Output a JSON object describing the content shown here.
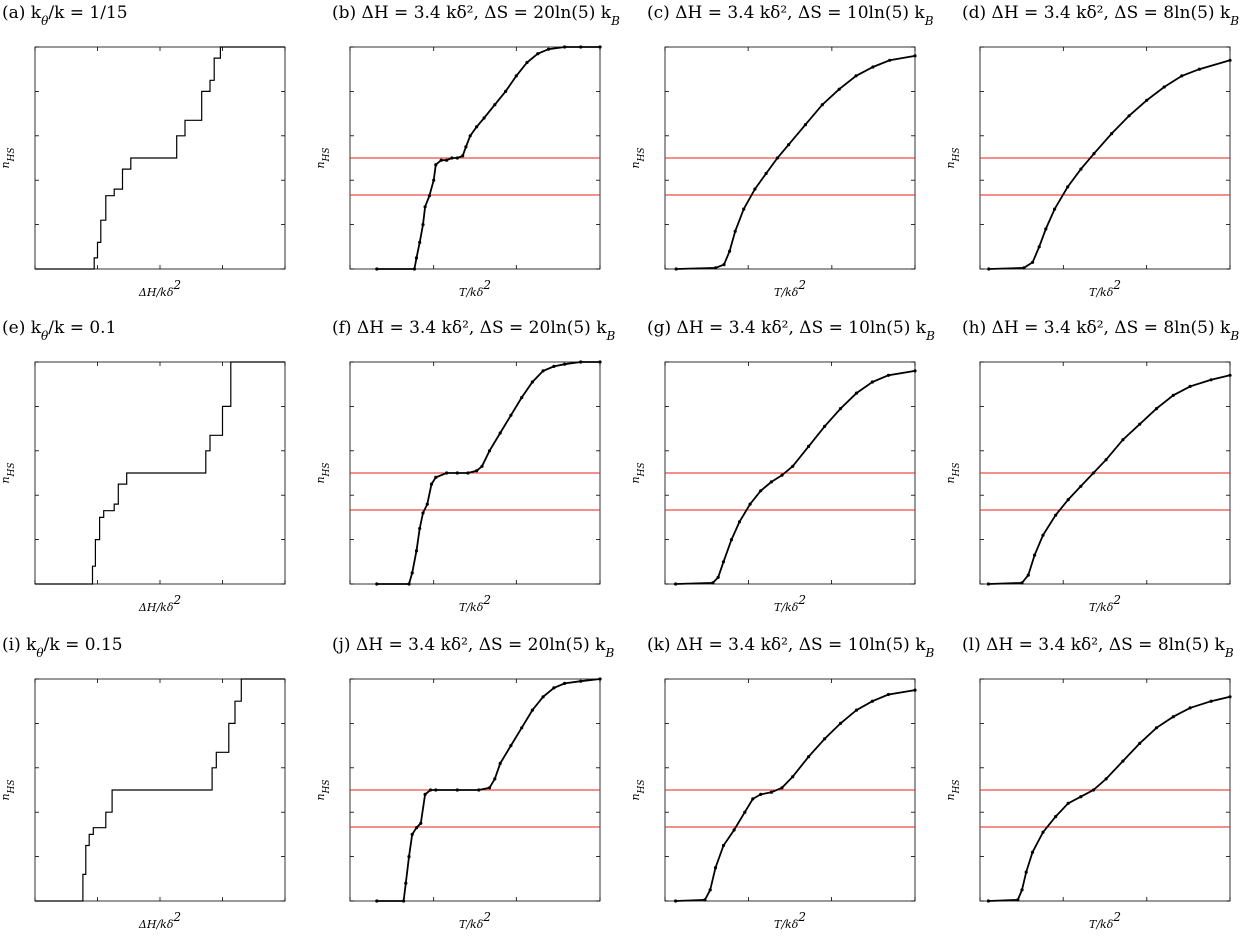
{
  "figure": {
    "colors": {
      "curve": "#000000",
      "reference": "#e8201a",
      "axes": "#000000"
    },
    "y_ticks": [
      "0",
      "0.2",
      "0.4",
      "0.6",
      "0.8",
      "1"
    ],
    "y_label": "n_HS",
    "x_label_dH": "ΔH/kδ²",
    "x_label_T": "T/kδ²",
    "reference_labels": {
      "half": "1/2",
      "third": "1/3"
    }
  },
  "chart_data": [
    {
      "id": "a",
      "type": "line",
      "title": "(a) k_θ/k = 1/15",
      "xlabel": "ΔH/kδ²",
      "ylabel": "n_HS",
      "xlim": [
        3,
        -3
      ],
      "ylim": [
        0,
        1
      ],
      "x_reversed": true,
      "x_ticks": [
        "3",
        "1.5",
        "0",
        "-1.5",
        "-3"
      ],
      "x": [
        3.0,
        1.65,
        1.58,
        1.5,
        1.42,
        1.3,
        1.1,
        0.9,
        0.7,
        0.6,
        -0.3,
        -0.4,
        -0.6,
        -0.8,
        -1.0,
        -1.2,
        -1.3,
        -1.45,
        -1.9,
        -3.0
      ],
      "y": [
        0,
        0,
        0.05,
        0.12,
        0.22,
        0.33,
        0.36,
        0.45,
        0.5,
        0.5,
        0.5,
        0.6,
        0.67,
        0.67,
        0.8,
        0.85,
        0.95,
        1.0,
        1.0,
        1.0
      ]
    },
    {
      "id": "b",
      "type": "line",
      "title": "(b) ΔH = 3.4 kδ², ΔS = 20ln(5) k_B",
      "xlabel": "T/kδ²",
      "ylabel": "n_HS",
      "xlim": [
        0,
        0.233
      ],
      "ylim": [
        0,
        1
      ],
      "x_ticks": [
        "0",
        "0.078",
        "0.155",
        "0.233"
      ],
      "reference_lines": [
        0.5,
        0.3333
      ],
      "x": [
        0.025,
        0.06,
        0.062,
        0.065,
        0.068,
        0.07,
        0.074,
        0.078,
        0.08,
        0.085,
        0.09,
        0.095,
        0.1,
        0.105,
        0.108,
        0.112,
        0.118,
        0.125,
        0.135,
        0.145,
        0.155,
        0.165,
        0.175,
        0.185,
        0.2,
        0.215,
        0.233
      ],
      "y": [
        0,
        0,
        0.05,
        0.12,
        0.2,
        0.28,
        0.33,
        0.4,
        0.47,
        0.49,
        0.49,
        0.5,
        0.5,
        0.51,
        0.55,
        0.6,
        0.64,
        0.68,
        0.74,
        0.8,
        0.87,
        0.93,
        0.97,
        0.99,
        1.0,
        1.0,
        1.0
      ]
    },
    {
      "id": "c",
      "type": "line",
      "title": "(c) ΔH = 3.4 kδ², ΔS = 10ln(5) k_B",
      "xlabel": "T/kδ²",
      "ylabel": "n_HS",
      "xlim": [
        0,
        0.445
      ],
      "ylim": [
        0,
        1
      ],
      "x_ticks": [
        "0",
        "0.148",
        "0.297",
        "0.445"
      ],
      "reference_lines": [
        0.5,
        0.3333
      ],
      "x": [
        0.02,
        0.09,
        0.105,
        0.115,
        0.125,
        0.14,
        0.16,
        0.18,
        0.2,
        0.22,
        0.25,
        0.28,
        0.31,
        0.34,
        0.37,
        0.4,
        0.445
      ],
      "y": [
        0,
        0.005,
        0.02,
        0.08,
        0.17,
        0.27,
        0.36,
        0.43,
        0.5,
        0.56,
        0.65,
        0.74,
        0.81,
        0.87,
        0.91,
        0.94,
        0.96
      ]
    },
    {
      "id": "d",
      "type": "line",
      "title": "(d) ΔH = 3.4 kδ², ΔS = 8ln(5) k_B",
      "xlabel": "T/kδ²",
      "ylabel": "n_HS",
      "xlim": [
        0,
        0.57
      ],
      "ylim": [
        0,
        1
      ],
      "x_ticks": [
        "0",
        "0.19",
        "0.38",
        "0.57"
      ],
      "reference_lines": [
        0.5,
        0.3333
      ],
      "x": [
        0.02,
        0.1,
        0.12,
        0.135,
        0.15,
        0.17,
        0.2,
        0.23,
        0.26,
        0.3,
        0.34,
        0.38,
        0.42,
        0.46,
        0.5,
        0.57
      ],
      "y": [
        0,
        0.005,
        0.03,
        0.1,
        0.18,
        0.27,
        0.37,
        0.45,
        0.52,
        0.61,
        0.69,
        0.76,
        0.82,
        0.87,
        0.9,
        0.94
      ]
    },
    {
      "id": "e",
      "type": "line",
      "title": "(e) k_θ/k = 0.1",
      "xlabel": "ΔH/kδ²",
      "ylabel": "n_HS",
      "xlim": [
        3,
        -3
      ],
      "ylim": [
        0,
        1
      ],
      "x_reversed": true,
      "x_ticks": [
        "3",
        "1.5",
        "0",
        "-1.5",
        "-3"
      ],
      "x": [
        3.0,
        1.7,
        1.62,
        1.55,
        1.45,
        1.35,
        1.1,
        1.0,
        0.8,
        -1.0,
        -1.1,
        -1.2,
        -1.3,
        -1.5,
        -1.7,
        -1.9,
        -3.0
      ],
      "y": [
        0,
        0,
        0.08,
        0.2,
        0.3,
        0.33,
        0.36,
        0.45,
        0.5,
        0.5,
        0.6,
        0.67,
        0.67,
        0.8,
        1.0,
        1.0,
        1.0
      ]
    },
    {
      "id": "f",
      "type": "line",
      "title": "(f) ΔH = 3.4 kδ², ΔS = 20ln(5) k_B",
      "xlabel": "T/kδ²",
      "ylabel": "n_HS",
      "xlim": [
        0,
        0.233
      ],
      "ylim": [
        0,
        1
      ],
      "x_ticks": [
        "0",
        "0.078",
        "0.155",
        "0.233"
      ],
      "reference_lines": [
        0.5,
        0.3333
      ],
      "x": [
        0.025,
        0.055,
        0.058,
        0.062,
        0.065,
        0.068,
        0.072,
        0.076,
        0.08,
        0.09,
        0.1,
        0.11,
        0.118,
        0.123,
        0.13,
        0.14,
        0.15,
        0.16,
        0.17,
        0.18,
        0.19,
        0.2,
        0.215,
        0.233
      ],
      "y": [
        0,
        0,
        0.05,
        0.15,
        0.25,
        0.32,
        0.36,
        0.45,
        0.48,
        0.5,
        0.5,
        0.5,
        0.51,
        0.53,
        0.6,
        0.68,
        0.76,
        0.84,
        0.91,
        0.96,
        0.98,
        0.99,
        1.0,
        1.0
      ]
    },
    {
      "id": "g",
      "type": "line",
      "title": "(g) ΔH = 3.4 kδ², ΔS = 10ln(5) k_B",
      "xlabel": "T/kδ²",
      "ylabel": "n_HS",
      "xlim": [
        0,
        0.47
      ],
      "ylim": [
        0,
        1
      ],
      "x_ticks": [
        "0",
        "0.157",
        "0.313",
        "0.47"
      ],
      "reference_lines": [
        0.5,
        0.3333
      ],
      "x": [
        0.02,
        0.09,
        0.1,
        0.11,
        0.125,
        0.14,
        0.16,
        0.18,
        0.2,
        0.22,
        0.24,
        0.27,
        0.3,
        0.33,
        0.36,
        0.39,
        0.42,
        0.47
      ],
      "y": [
        0,
        0.005,
        0.03,
        0.1,
        0.2,
        0.28,
        0.36,
        0.42,
        0.46,
        0.49,
        0.53,
        0.62,
        0.71,
        0.79,
        0.86,
        0.91,
        0.94,
        0.96
      ]
    },
    {
      "id": "h",
      "type": "line",
      "title": "(h) ΔH = 3.4 kδ², ΔS = 8ln(5) k_B",
      "xlabel": "T/kδ²",
      "ylabel": "n_HS",
      "xlim": [
        0,
        0.595
      ],
      "ylim": [
        0,
        1
      ],
      "x_ticks": [
        "0",
        "0.198",
        "0.397",
        "0.595"
      ],
      "reference_lines": [
        0.5,
        0.3333
      ],
      "x": [
        0.02,
        0.1,
        0.115,
        0.13,
        0.15,
        0.18,
        0.21,
        0.24,
        0.27,
        0.3,
        0.34,
        0.38,
        0.42,
        0.46,
        0.5,
        0.55,
        0.595
      ],
      "y": [
        0,
        0.005,
        0.04,
        0.13,
        0.22,
        0.31,
        0.38,
        0.44,
        0.5,
        0.56,
        0.65,
        0.72,
        0.79,
        0.85,
        0.89,
        0.92,
        0.94
      ]
    },
    {
      "id": "i",
      "type": "line",
      "title": "(i) k_θ/k = 0.15",
      "xlabel": "ΔH/kδ²",
      "ylabel": "n_HS",
      "xlim": [
        3,
        -3
      ],
      "ylim": [
        0,
        1
      ],
      "x_reversed": true,
      "x": [
        3.0,
        1.9,
        1.85,
        1.78,
        1.7,
        1.6,
        1.4,
        1.3,
        1.15,
        -1.2,
        -1.25,
        -1.35,
        -1.5,
        -1.65,
        -1.8,
        -1.95,
        -3.0
      ],
      "x_ticks": [
        "3",
        "1.5",
        "0",
        "-1.5",
        "-3"
      ],
      "y": [
        0,
        0,
        0.12,
        0.25,
        0.3,
        0.33,
        0.33,
        0.4,
        0.5,
        0.5,
        0.6,
        0.67,
        0.67,
        0.8,
        0.9,
        1.0,
        1.0
      ]
    },
    {
      "id": "j",
      "type": "line",
      "title": "(j) ΔH = 3.4 kδ², ΔS = 20ln(5) k_B",
      "xlabel": "T/kδ²",
      "ylabel": "n_HS",
      "xlim": [
        0,
        0.233
      ],
      "ylim": [
        0,
        1
      ],
      "x_ticks": [
        "0",
        "0.078",
        "0.155",
        "0.233"
      ],
      "reference_lines": [
        0.5,
        0.3333
      ],
      "x": [
        0.025,
        0.05,
        0.052,
        0.055,
        0.058,
        0.062,
        0.066,
        0.07,
        0.075,
        0.08,
        0.1,
        0.12,
        0.13,
        0.135,
        0.14,
        0.15,
        0.16,
        0.17,
        0.18,
        0.19,
        0.2,
        0.215,
        0.233
      ],
      "y": [
        0,
        0,
        0.08,
        0.2,
        0.3,
        0.33,
        0.35,
        0.48,
        0.5,
        0.5,
        0.5,
        0.5,
        0.51,
        0.55,
        0.62,
        0.7,
        0.78,
        0.86,
        0.92,
        0.96,
        0.98,
        0.99,
        1.0
      ]
    },
    {
      "id": "k",
      "type": "line",
      "title": "(k) ΔH = 3.4 kδ², ΔS = 10ln(5) k_B",
      "xlabel": "T/kδ²",
      "ylabel": "n_HS",
      "xlim": [
        0,
        0.47
      ],
      "ylim": [
        0,
        1
      ],
      "x_ticks": [
        "0",
        "0.157",
        "0.313",
        "0.47"
      ],
      "reference_lines": [
        0.5,
        0.3333
      ],
      "x": [
        0.02,
        0.075,
        0.085,
        0.095,
        0.11,
        0.13,
        0.15,
        0.165,
        0.18,
        0.2,
        0.22,
        0.24,
        0.27,
        0.3,
        0.33,
        0.36,
        0.39,
        0.42,
        0.47
      ],
      "y": [
        0,
        0.005,
        0.05,
        0.15,
        0.25,
        0.32,
        0.4,
        0.46,
        0.48,
        0.49,
        0.51,
        0.56,
        0.65,
        0.73,
        0.8,
        0.86,
        0.9,
        0.93,
        0.95
      ]
    },
    {
      "id": "l",
      "type": "line",
      "title": "(l) ΔH = 3.4 kδ², ΔS = 8ln(5) k_B",
      "xlabel": "T/kδ²",
      "ylabel": "n_HS",
      "xlim": [
        0,
        0.595
      ],
      "ylim": [
        0,
        1
      ],
      "x_ticks": [
        "0",
        "0.198",
        "0.397",
        "0.595"
      ],
      "reference_lines": [
        0.5,
        0.3333
      ],
      "x": [
        0.02,
        0.09,
        0.1,
        0.11,
        0.125,
        0.15,
        0.18,
        0.21,
        0.24,
        0.27,
        0.3,
        0.34,
        0.38,
        0.42,
        0.46,
        0.5,
        0.55,
        0.595
      ],
      "y": [
        0,
        0.005,
        0.05,
        0.13,
        0.22,
        0.31,
        0.38,
        0.44,
        0.47,
        0.5,
        0.55,
        0.63,
        0.71,
        0.78,
        0.83,
        0.87,
        0.9,
        0.92
      ]
    }
  ]
}
